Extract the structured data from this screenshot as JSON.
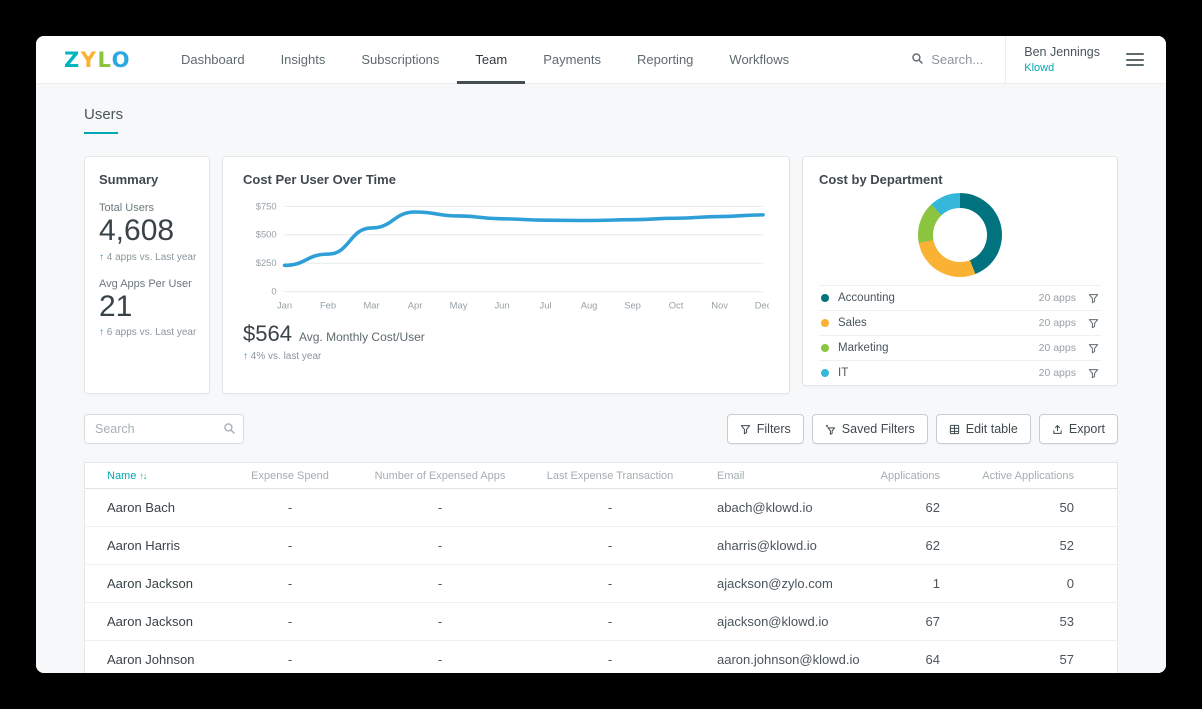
{
  "accent": "#00a7b5",
  "app": {
    "brand": {
      "text": "ZYLO",
      "letter_colors": [
        "#00b5c2",
        "#f9b234",
        "#8bc53f",
        "#2da9e1"
      ]
    },
    "nav": [
      {
        "label": "Dashboard"
      },
      {
        "label": "Insights"
      },
      {
        "label": "Subscriptions"
      },
      {
        "label": "Team"
      },
      {
        "label": "Payments"
      },
      {
        "label": "Reporting"
      },
      {
        "label": "Workflows"
      }
    ],
    "active_nav": "Team",
    "header_search": "Search...",
    "user": {
      "name": "Ben Jennings",
      "org": "Klowd"
    }
  },
  "page_title": "Users",
  "summary_card": {
    "title": "Summary",
    "metrics": [
      {
        "label": "Total Users",
        "value": "4,608",
        "delta_arrow": "↑",
        "delta_text": "4 apps vs. Last year"
      },
      {
        "label": "Avg Apps Per User",
        "value": "21",
        "delta_arrow": "↑",
        "delta_text": "6 apps vs. Last year"
      }
    ]
  },
  "chart_data": [
    {
      "type": "line",
      "title": "Cost Per User Over Time",
      "x": [
        "Jan",
        "Feb",
        "Mar",
        "Apr",
        "May",
        "Jun",
        "Jul",
        "Aug",
        "Sep",
        "Oct",
        "Nov",
        "Dec"
      ],
      "series": [
        {
          "name": "Avg monthly cost per user",
          "color": "#2f9fd8",
          "values": [
            230,
            330,
            560,
            700,
            665,
            640,
            628,
            625,
            632,
            645,
            660,
            675
          ]
        }
      ],
      "ylim": [
        0,
        800
      ],
      "y_ticks": [
        {
          "label": "$750",
          "value": 750
        },
        {
          "label": "$500",
          "value": 500
        },
        {
          "label": "$250",
          "value": 250
        },
        {
          "label": "0",
          "value": 0
        }
      ],
      "grid": true,
      "legend": "none",
      "stat_value": "$564",
      "stat_label": "Avg. Monthly Cost/User",
      "stat_delta_arrow": "↑",
      "stat_delta_text": "4% vs. last year"
    },
    {
      "type": "donut",
      "title": "Cost by Department",
      "legend_position": "bottom",
      "segments": [
        {
          "label": "Accounting",
          "apps": "20 apps",
          "color": "#00737e",
          "fraction": 0.44
        },
        {
          "label": "Sales",
          "apps": "20 apps",
          "color": "#f9b234",
          "fraction": 0.28
        },
        {
          "label": "Marketing",
          "apps": "20 apps",
          "color": "#8bc53f",
          "fraction": 0.16
        },
        {
          "label": "IT",
          "apps": "20 apps",
          "color": "#35b7d9",
          "fraction": 0.12
        }
      ]
    }
  ],
  "toolbar": {
    "search_placeholder": "Search",
    "buttons": [
      {
        "label": "Filters",
        "icon": "filter-icon"
      },
      {
        "label": "Saved Filters",
        "icon": "saved-filters-icon"
      },
      {
        "label": "Edit table",
        "icon": "edit-table-icon"
      },
      {
        "label": "Export",
        "icon": "export-icon"
      }
    ]
  },
  "table": {
    "columns": [
      {
        "label": "Name",
        "align": "left",
        "sorted": true
      },
      {
        "label": "Expense Spend",
        "align": "center"
      },
      {
        "label": "Number of Expensed Apps",
        "align": "center"
      },
      {
        "label": "Last Expense Transaction",
        "align": "center"
      },
      {
        "label": "Email",
        "align": "left"
      },
      {
        "label": "Applications",
        "align": "right"
      },
      {
        "label": "Active Applications",
        "align": "right"
      }
    ],
    "rows": [
      [
        "Aaron Bach",
        "-",
        "-",
        "-",
        "abach@klowd.io",
        "62",
        "50"
      ],
      [
        "Aaron Harris",
        "-",
        "-",
        "-",
        "aharris@klowd.io",
        "62",
        "52"
      ],
      [
        "Aaron Jackson",
        "-",
        "-",
        "-",
        "ajackson@zylo.com",
        "1",
        "0"
      ],
      [
        "Aaron Jackson",
        "-",
        "-",
        "-",
        "ajackson@klowd.io",
        "67",
        "53"
      ],
      [
        "Aaron Johnson",
        "-",
        "-",
        "-",
        "aaron.johnson@klowd.io",
        "64",
        "57"
      ]
    ]
  }
}
